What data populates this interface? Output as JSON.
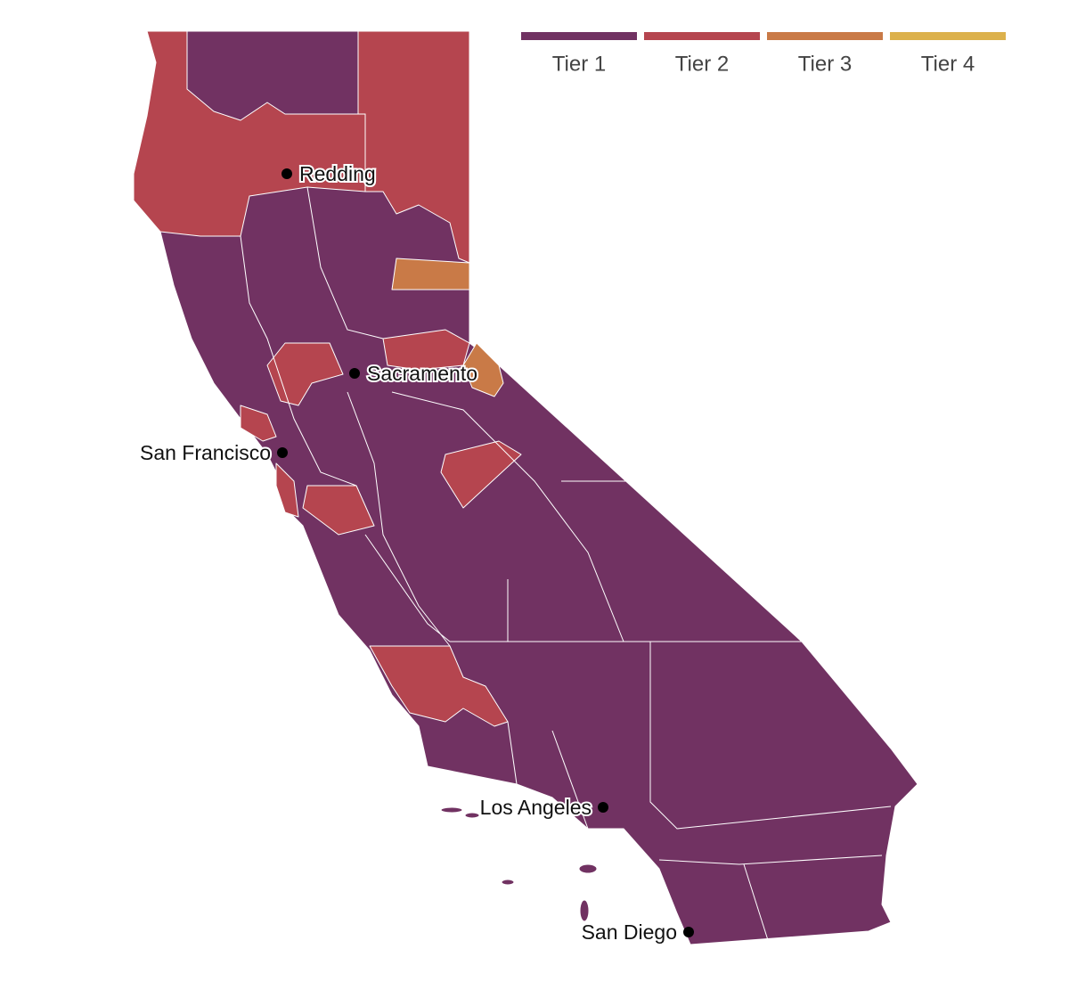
{
  "legend": {
    "items": [
      {
        "label": "Tier 1",
        "color": "#713262"
      },
      {
        "label": "Tier 2",
        "color": "#b5454f"
      },
      {
        "label": "Tier 3",
        "color": "#c97a47"
      },
      {
        "label": "Tier 4",
        "color": "#dcb14c"
      }
    ]
  },
  "cities": [
    {
      "label": "Redding"
    },
    {
      "label": "Sacramento"
    },
    {
      "label": "San Francisco"
    },
    {
      "label": "Los Angeles"
    },
    {
      "label": "San Diego"
    }
  ]
}
